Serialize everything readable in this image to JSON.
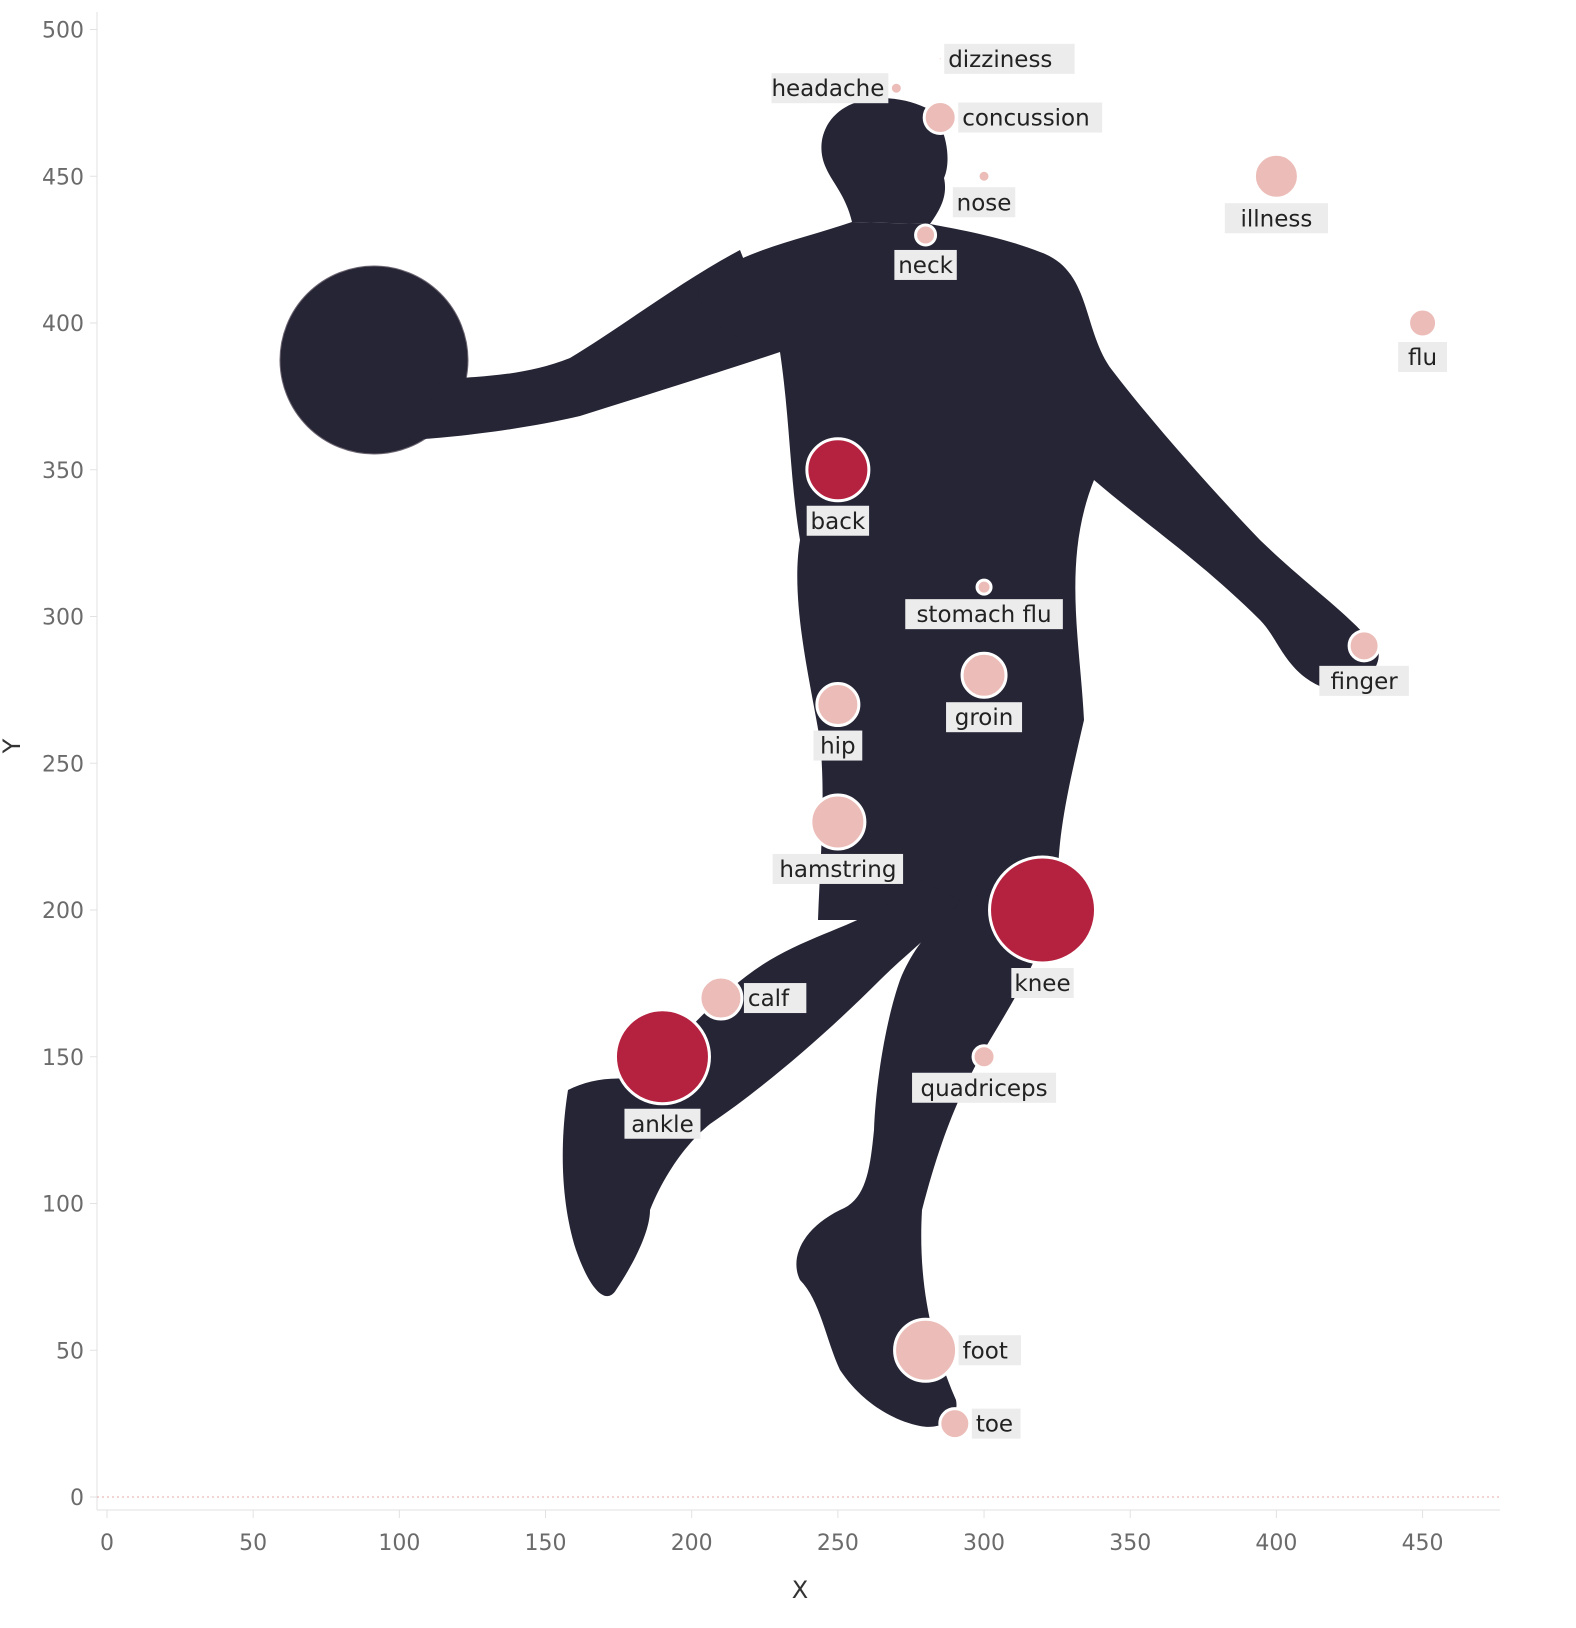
{
  "chart_data": {
    "type": "scatter",
    "title": "",
    "xlabel": "X",
    "ylabel": "Y",
    "xlim": [
      0,
      480
    ],
    "ylim": [
      0,
      500
    ],
    "xticks": [
      0,
      50,
      100,
      150,
      200,
      250,
      300,
      350,
      400,
      450
    ],
    "yticks": [
      0,
      50,
      100,
      150,
      200,
      250,
      300,
      350,
      400,
      450,
      500
    ],
    "grid": false,
    "colors": {
      "high": "#b5223f",
      "low": "#ecbdb8",
      "silhouette": "#252536",
      "outline": "#ffffff"
    },
    "points": [
      {
        "label": "dizziness",
        "x": 285,
        "y": 490,
        "r": 2,
        "level": "low",
        "label_pos": "right"
      },
      {
        "label": "headache",
        "x": 270,
        "y": 480,
        "r": 6,
        "level": "low",
        "label_pos": "left"
      },
      {
        "label": "concussion",
        "x": 285,
        "y": 470,
        "r": 16,
        "level": "low",
        "label_pos": "right"
      },
      {
        "label": "nose",
        "x": 300,
        "y": 450,
        "r": 6,
        "level": "low",
        "label_pos": "below"
      },
      {
        "label": "illness",
        "x": 400,
        "y": 450,
        "r": 22,
        "level": "low",
        "label_pos": "below"
      },
      {
        "label": "neck",
        "x": 280,
        "y": 430,
        "r": 10,
        "level": "low",
        "label_pos": "below"
      },
      {
        "label": "flu",
        "x": 450,
        "y": 400,
        "r": 14,
        "level": "low",
        "label_pos": "below"
      },
      {
        "label": "back",
        "x": 250,
        "y": 350,
        "r": 31,
        "level": "high",
        "label_pos": "below"
      },
      {
        "label": "stomach flu",
        "x": 300,
        "y": 310,
        "r": 7,
        "level": "low",
        "label_pos": "below"
      },
      {
        "label": "finger",
        "x": 430,
        "y": 290,
        "r": 15,
        "level": "low",
        "label_pos": "below"
      },
      {
        "label": "groin",
        "x": 300,
        "y": 280,
        "r": 22,
        "level": "low",
        "label_pos": "below"
      },
      {
        "label": "hip",
        "x": 250,
        "y": 270,
        "r": 21,
        "level": "low",
        "label_pos": "below"
      },
      {
        "label": "hamstring",
        "x": 250,
        "y": 230,
        "r": 27,
        "level": "low",
        "label_pos": "below"
      },
      {
        "label": "knee",
        "x": 320,
        "y": 200,
        "r": 53,
        "level": "high",
        "label_pos": "below"
      },
      {
        "label": "calf",
        "x": 210,
        "y": 170,
        "r": 21,
        "level": "low",
        "label_pos": "right"
      },
      {
        "label": "ankle",
        "x": 190,
        "y": 150,
        "r": 47,
        "level": "high",
        "label_pos": "below"
      },
      {
        "label": "quadriceps",
        "x": 300,
        "y": 150,
        "r": 11,
        "level": "low",
        "label_pos": "below"
      },
      {
        "label": "foot",
        "x": 280,
        "y": 50,
        "r": 31,
        "level": "low",
        "label_pos": "right"
      },
      {
        "label": "toe",
        "x": 290,
        "y": 25,
        "r": 15,
        "level": "low",
        "label_pos": "right"
      }
    ]
  }
}
